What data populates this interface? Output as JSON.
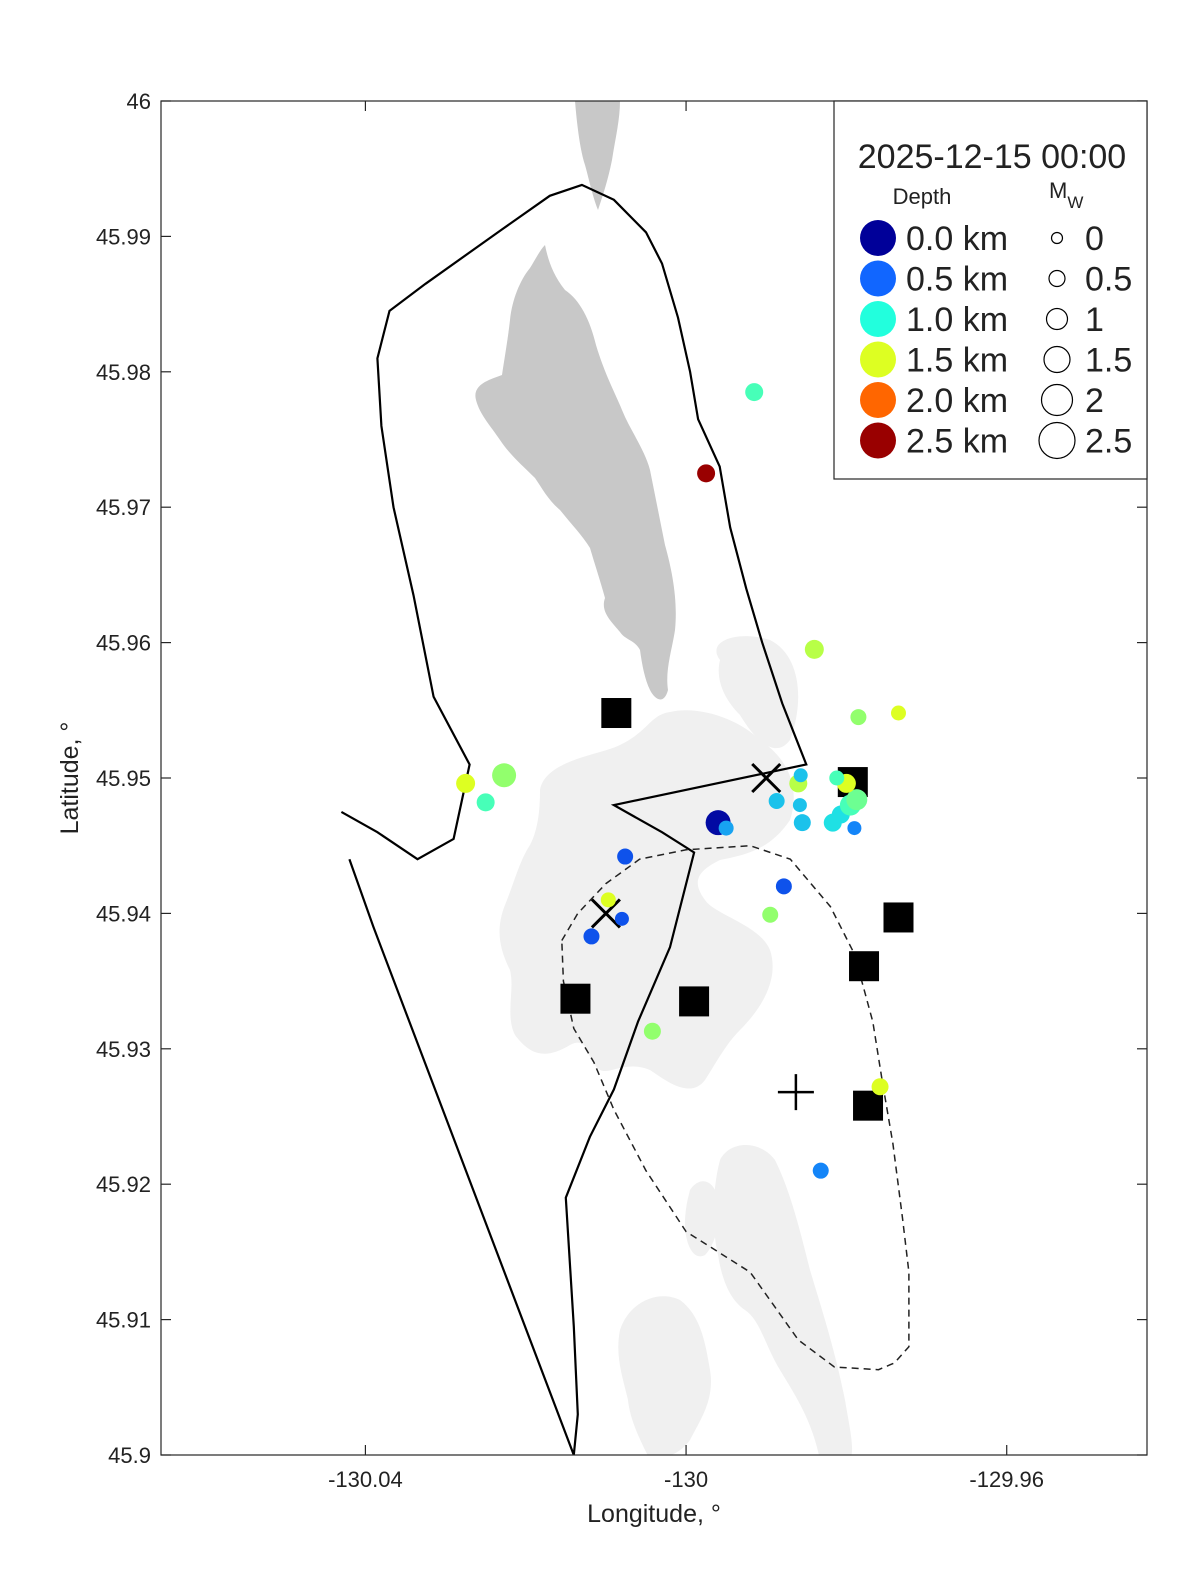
{
  "chart_data": {
    "type": "scatter",
    "xlabel": "Longitude, °",
    "ylabel": "Latitude, °",
    "xlim": [
      -130.0655,
      -129.9425
    ],
    "ylim": [
      45.9,
      46.0
    ],
    "x_tick_values": [
      -130.04,
      -130,
      -129.96
    ],
    "x_tick_labels": [
      "-130.04",
      "-130",
      "-129.96"
    ],
    "y_tick_values": [
      45.9,
      45.91,
      45.92,
      45.93,
      45.94,
      45.95,
      45.96,
      45.97,
      45.98,
      45.99,
      46.0
    ],
    "y_tick_labels": [
      "45.9",
      "45.91",
      "45.92",
      "45.93",
      "45.94",
      "45.95",
      "45.96",
      "45.97",
      "45.98",
      "45.99",
      "46"
    ],
    "grid": false,
    "legend": {
      "title": "2025-12-15 00:00",
      "position": "top-right",
      "depth_header": "Depth",
      "mw_header": "M",
      "mw_header_sub": "W",
      "depth_entries": [
        {
          "label": "0.0 km",
          "color": "#000099"
        },
        {
          "label": "0.5 km",
          "color": "#1166ff"
        },
        {
          "label": "1.0 km",
          "color": "#22ffdd"
        },
        {
          "label": "1.5 km",
          "color": "#ddff22"
        },
        {
          "label": "2.0 km",
          "color": "#ff6600"
        },
        {
          "label": "2.5 km",
          "color": "#990000"
        }
      ],
      "mw_entries": [
        {
          "label": "0",
          "mw": 0
        },
        {
          "label": "0.5",
          "mw": 0.5
        },
        {
          "label": "1",
          "mw": 1
        },
        {
          "label": "1.5",
          "mw": 1.5
        },
        {
          "label": "2",
          "mw": 2
        },
        {
          "label": "2.5",
          "mw": 2.5
        }
      ]
    },
    "land_color": "#c8c8c8",
    "shallow_color": "#f0f0f0",
    "earthquakes": [
      {
        "lon": -129.9915,
        "lat": 45.9785,
        "depth_km": 1.1,
        "mw": 0.6
      },
      {
        "lon": -129.9975,
        "lat": 45.9725,
        "depth_km": 2.6,
        "mw": 0.6
      },
      {
        "lon": -129.984,
        "lat": 45.9595,
        "depth_km": 1.4,
        "mw": 0.7
      },
      {
        "lon": -129.9785,
        "lat": 45.9545,
        "depth_km": 1.3,
        "mw": 0.4
      },
      {
        "lon": -129.9735,
        "lat": 45.9548,
        "depth_km": 1.5,
        "mw": 0.3
      },
      {
        "lon": -130.0275,
        "lat": 45.9496,
        "depth_km": 1.5,
        "mw": 0.7
      },
      {
        "lon": -130.025,
        "lat": 45.9482,
        "depth_km": 1.1,
        "mw": 0.6
      },
      {
        "lon": -130.0227,
        "lat": 45.9502,
        "depth_km": 1.3,
        "mw": 1.2
      },
      {
        "lon": -129.996,
        "lat": 45.9467,
        "depth_km": 0.05,
        "mw": 1.3
      },
      {
        "lon": -129.995,
        "lat": 45.9463,
        "depth_km": 0.7,
        "mw": 0.3
      },
      {
        "lon": -129.9887,
        "lat": 45.9483,
        "depth_km": 0.8,
        "mw": 0.4
      },
      {
        "lon": -129.986,
        "lat": 45.9496,
        "depth_km": 1.4,
        "mw": 0.6
      },
      {
        "lon": -129.9857,
        "lat": 45.9502,
        "depth_km": 0.8,
        "mw": 0.2
      },
      {
        "lon": -129.9858,
        "lat": 45.948,
        "depth_km": 0.8,
        "mw": 0.2
      },
      {
        "lon": -129.9855,
        "lat": 45.9467,
        "depth_km": 0.8,
        "mw": 0.5
      },
      {
        "lon": -129.9817,
        "lat": 45.9467,
        "depth_km": 0.9,
        "mw": 0.6
      },
      {
        "lon": -129.9807,
        "lat": 45.9473,
        "depth_km": 0.9,
        "mw": 0.6
      },
      {
        "lon": -129.9795,
        "lat": 45.948,
        "depth_km": 1.1,
        "mw": 0.9
      },
      {
        "lon": -129.9787,
        "lat": 45.9484,
        "depth_km": 1.2,
        "mw": 0.9
      },
      {
        "lon": -129.98,
        "lat": 45.9496,
        "depth_km": 1.5,
        "mw": 0.7
      },
      {
        "lon": -129.9812,
        "lat": 45.95,
        "depth_km": 1.1,
        "mw": 0.3
      },
      {
        "lon": -129.979,
        "lat": 45.9463,
        "depth_km": 0.6,
        "mw": 0.2
      },
      {
        "lon": -130.0076,
        "lat": 45.9442,
        "depth_km": 0.4,
        "mw": 0.4
      },
      {
        "lon": -129.9878,
        "lat": 45.942,
        "depth_km": 0.4,
        "mw": 0.4
      },
      {
        "lon": -129.9895,
        "lat": 45.9399,
        "depth_km": 1.3,
        "mw": 0.4
      },
      {
        "lon": -130.0097,
        "lat": 45.941,
        "depth_km": 1.5,
        "mw": 0.3
      },
      {
        "lon": -130.008,
        "lat": 45.9396,
        "depth_km": 0.4,
        "mw": 0.2
      },
      {
        "lon": -130.0118,
        "lat": 45.9383,
        "depth_km": 0.4,
        "mw": 0.4
      },
      {
        "lon": -130.0042,
        "lat": 45.9313,
        "depth_km": 1.3,
        "mw": 0.5
      },
      {
        "lon": -129.9758,
        "lat": 45.9272,
        "depth_km": 1.5,
        "mw": 0.5
      },
      {
        "lon": -129.9832,
        "lat": 45.921,
        "depth_km": 0.6,
        "mw": 0.4
      }
    ],
    "stations": [
      {
        "lon": -130.0087,
        "lat": 45.9548
      },
      {
        "lon": -129.9792,
        "lat": 45.9497
      },
      {
        "lon": -129.9735,
        "lat": 45.9397
      },
      {
        "lon": -129.9778,
        "lat": 45.9361
      },
      {
        "lon": -130.0138,
        "lat": 45.9337
      },
      {
        "lon": -129.999,
        "lat": 45.9335
      },
      {
        "lon": -129.9773,
        "lat": 45.9258
      }
    ],
    "x_markers": [
      {
        "lon": -129.99,
        "lat": 45.95
      },
      {
        "lon": -130.01,
        "lat": 45.94
      }
    ],
    "plus_markers": [
      {
        "lon": -129.9863,
        "lat": 45.9268
      }
    ],
    "solid_outline": [
      [
        -130.043,
        45.9475
      ],
      [
        -130.0385,
        45.946
      ],
      [
        -130.0335,
        45.944
      ],
      [
        -130.029,
        45.9455
      ],
      [
        -130.027,
        45.951
      ],
      [
        -130.0315,
        45.956
      ],
      [
        -130.034,
        45.9635
      ],
      [
        -130.0365,
        45.97
      ],
      [
        -130.038,
        45.976
      ],
      [
        -130.0385,
        45.981
      ],
      [
        -130.037,
        45.9845
      ],
      [
        -130.0325,
        45.9865
      ],
      [
        -130.023,
        45.9905
      ],
      [
        -130.017,
        45.993
      ],
      [
        -130.013,
        45.9938
      ],
      [
        -130.009,
        45.9927
      ],
      [
        -130.005,
        45.9903
      ],
      [
        -130.003,
        45.988
      ],
      [
        -130.001,
        45.984
      ],
      [
        -129.9995,
        45.98
      ],
      [
        -129.9985,
        45.9765
      ],
      [
        -129.9958,
        45.973
      ],
      [
        -129.9945,
        45.9685
      ],
      [
        -129.9925,
        45.964
      ],
      [
        -129.9905,
        45.96
      ],
      [
        -129.988,
        45.9555
      ],
      [
        -129.985,
        45.951
      ],
      [
        -130.009,
        45.948
      ],
      [
        -130.003,
        45.946
      ],
      [
        -129.999,
        45.9445
      ],
      [
        -130.002,
        45.9375
      ],
      [
        -130.006,
        45.932
      ],
      [
        -130.009,
        45.927
      ],
      [
        -130.012,
        45.9235
      ],
      [
        -130.015,
        45.919
      ],
      [
        -130.014,
        45.9095
      ],
      [
        -130.0135,
        45.903
      ],
      [
        -130.014,
        45.9
      ],
      [
        -130.039,
        45.939
      ],
      [
        -130.042,
        45.944
      ]
    ],
    "dashed_outline": [
      [
        -130.0155,
        45.938
      ],
      [
        -130.0135,
        45.94
      ],
      [
        -130.01,
        45.9422
      ],
      [
        -130.0058,
        45.944
      ],
      [
        -130.0,
        45.9447
      ],
      [
        -129.992,
        45.945
      ],
      [
        -129.987,
        45.944
      ],
      [
        -129.982,
        45.9405
      ],
      [
        -129.979,
        45.937
      ],
      [
        -129.9767,
        45.932
      ],
      [
        -129.9755,
        45.9275
      ],
      [
        -129.9742,
        45.923
      ],
      [
        -129.973,
        45.9175
      ],
      [
        -129.9722,
        45.9135
      ],
      [
        -129.9722,
        45.908
      ],
      [
        -129.974,
        45.9068
      ],
      [
        -129.976,
        45.9063
      ],
      [
        -129.9815,
        45.9065
      ],
      [
        -129.986,
        45.9085
      ],
      [
        -129.992,
        45.9135
      ],
      [
        -130.0,
        45.9165
      ],
      [
        -130.005,
        45.921
      ],
      [
        -130.009,
        45.9255
      ],
      [
        -130.0115,
        45.929
      ],
      [
        -130.014,
        45.9315
      ],
      [
        -130.0153,
        45.935
      ]
    ]
  }
}
